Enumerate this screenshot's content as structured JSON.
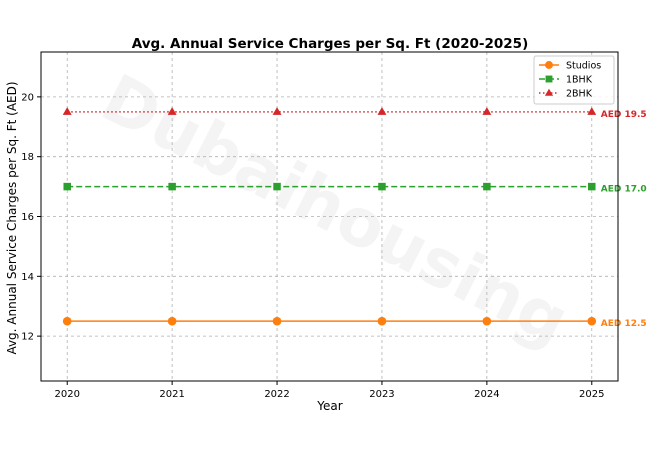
{
  "watermark": "Dubaihousing",
  "chart_data": {
    "type": "line",
    "title": "Avg. Annual Service Charges per Sq. Ft (2020-2025)",
    "xlabel": "Year",
    "ylabel": "Avg. Annual Service Charges per Sq. Ft (AED)",
    "x": [
      2020,
      2021,
      2022,
      2023,
      2024,
      2025
    ],
    "xlim": [
      2019.75,
      2025.25
    ],
    "ylim": [
      10.5,
      21.5
    ],
    "yticks": [
      12,
      14,
      16,
      18,
      20
    ],
    "grid": true,
    "legend_position": "top-right",
    "series": [
      {
        "name": "Studios",
        "values": [
          12.5,
          12.5,
          12.5,
          12.5,
          12.5,
          12.5
        ],
        "color": "#ff7f0e",
        "marker": "circle",
        "linestyle": "solid",
        "end_label": "AED 12.5"
      },
      {
        "name": "1BHK",
        "values": [
          17.0,
          17.0,
          17.0,
          17.0,
          17.0,
          17.0
        ],
        "color": "#2ca02c",
        "marker": "square",
        "linestyle": "dashed",
        "end_label": "AED 17.0"
      },
      {
        "name": "2BHK",
        "values": [
          19.5,
          19.5,
          19.5,
          19.5,
          19.5,
          19.5
        ],
        "color": "#d62728",
        "marker": "triangle",
        "linestyle": "dotted",
        "end_label": "AED 19.5"
      }
    ]
  }
}
